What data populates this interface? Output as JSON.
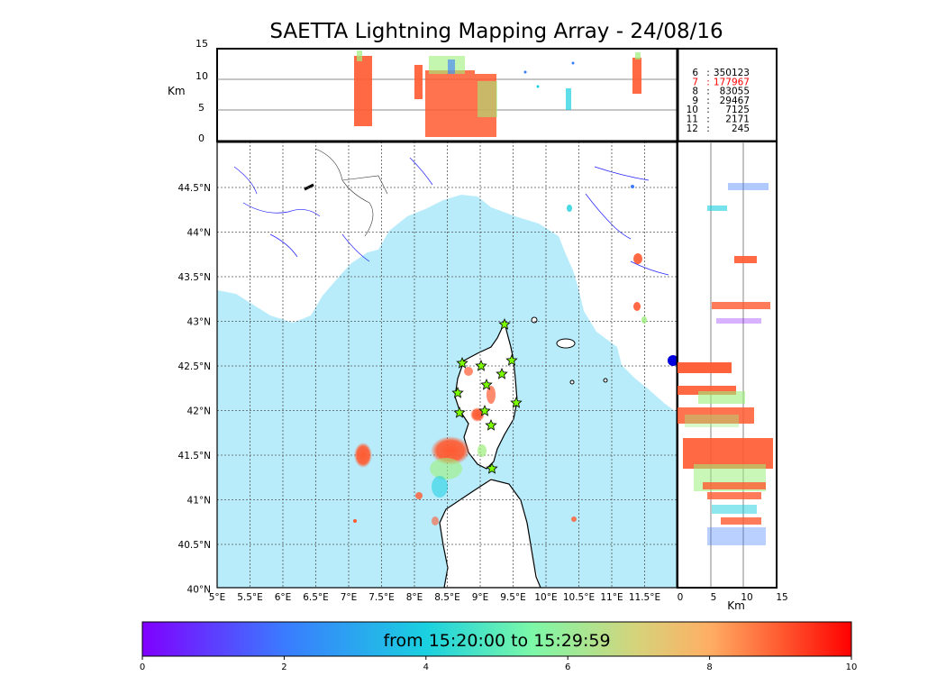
{
  "title": "SAETTA Lightning Mapping Array - 24/08/16",
  "altitude_panel": {
    "unit_label": "Km",
    "y_ticks": [
      "15",
      "10",
      "5",
      "0"
    ]
  },
  "altitude_lon_panel": {
    "unit_label": "Km",
    "x_ticks": [
      "0",
      "5",
      "10",
      "15"
    ]
  },
  "stats": [
    {
      "label": "6",
      "value": "350123",
      "highlight": false
    },
    {
      "label": "7",
      "value": "177967",
      "highlight": true
    },
    {
      "label": "8",
      "value": "83055",
      "highlight": false
    },
    {
      "label": "9",
      "value": "29467",
      "highlight": false
    },
    {
      "label": "10",
      "value": "7125",
      "highlight": false
    },
    {
      "label": "11",
      "value": "2171",
      "highlight": false
    },
    {
      "label": "12",
      "value": "245",
      "highlight": false
    }
  ],
  "stats_highlight_color": "#ff0000",
  "map": {
    "lon_ticks": [
      "5°E",
      "5.5°E",
      "6°E",
      "6.5°E",
      "7°E",
      "7.5°E",
      "8°E",
      "8.5°E",
      "9°E",
      "9.5°E",
      "10°E",
      "10.5°E",
      "11°E",
      "11.5°E"
    ],
    "lat_ticks": [
      "44.5°N",
      "44°N",
      "43.5°N",
      "43°N",
      "42.5°N",
      "42°N",
      "41.5°N",
      "41°N",
      "40.5°N",
      "40°N"
    ],
    "sea_color": "#b8ecfb",
    "station_marker": "star",
    "station_color": "#7cfc00"
  },
  "colorbar": {
    "label": "from 15:20:00 to 15:29:59",
    "ticks": [
      "0",
      "2",
      "4",
      "6",
      "8",
      "10"
    ],
    "colormap": "rainbow"
  }
}
